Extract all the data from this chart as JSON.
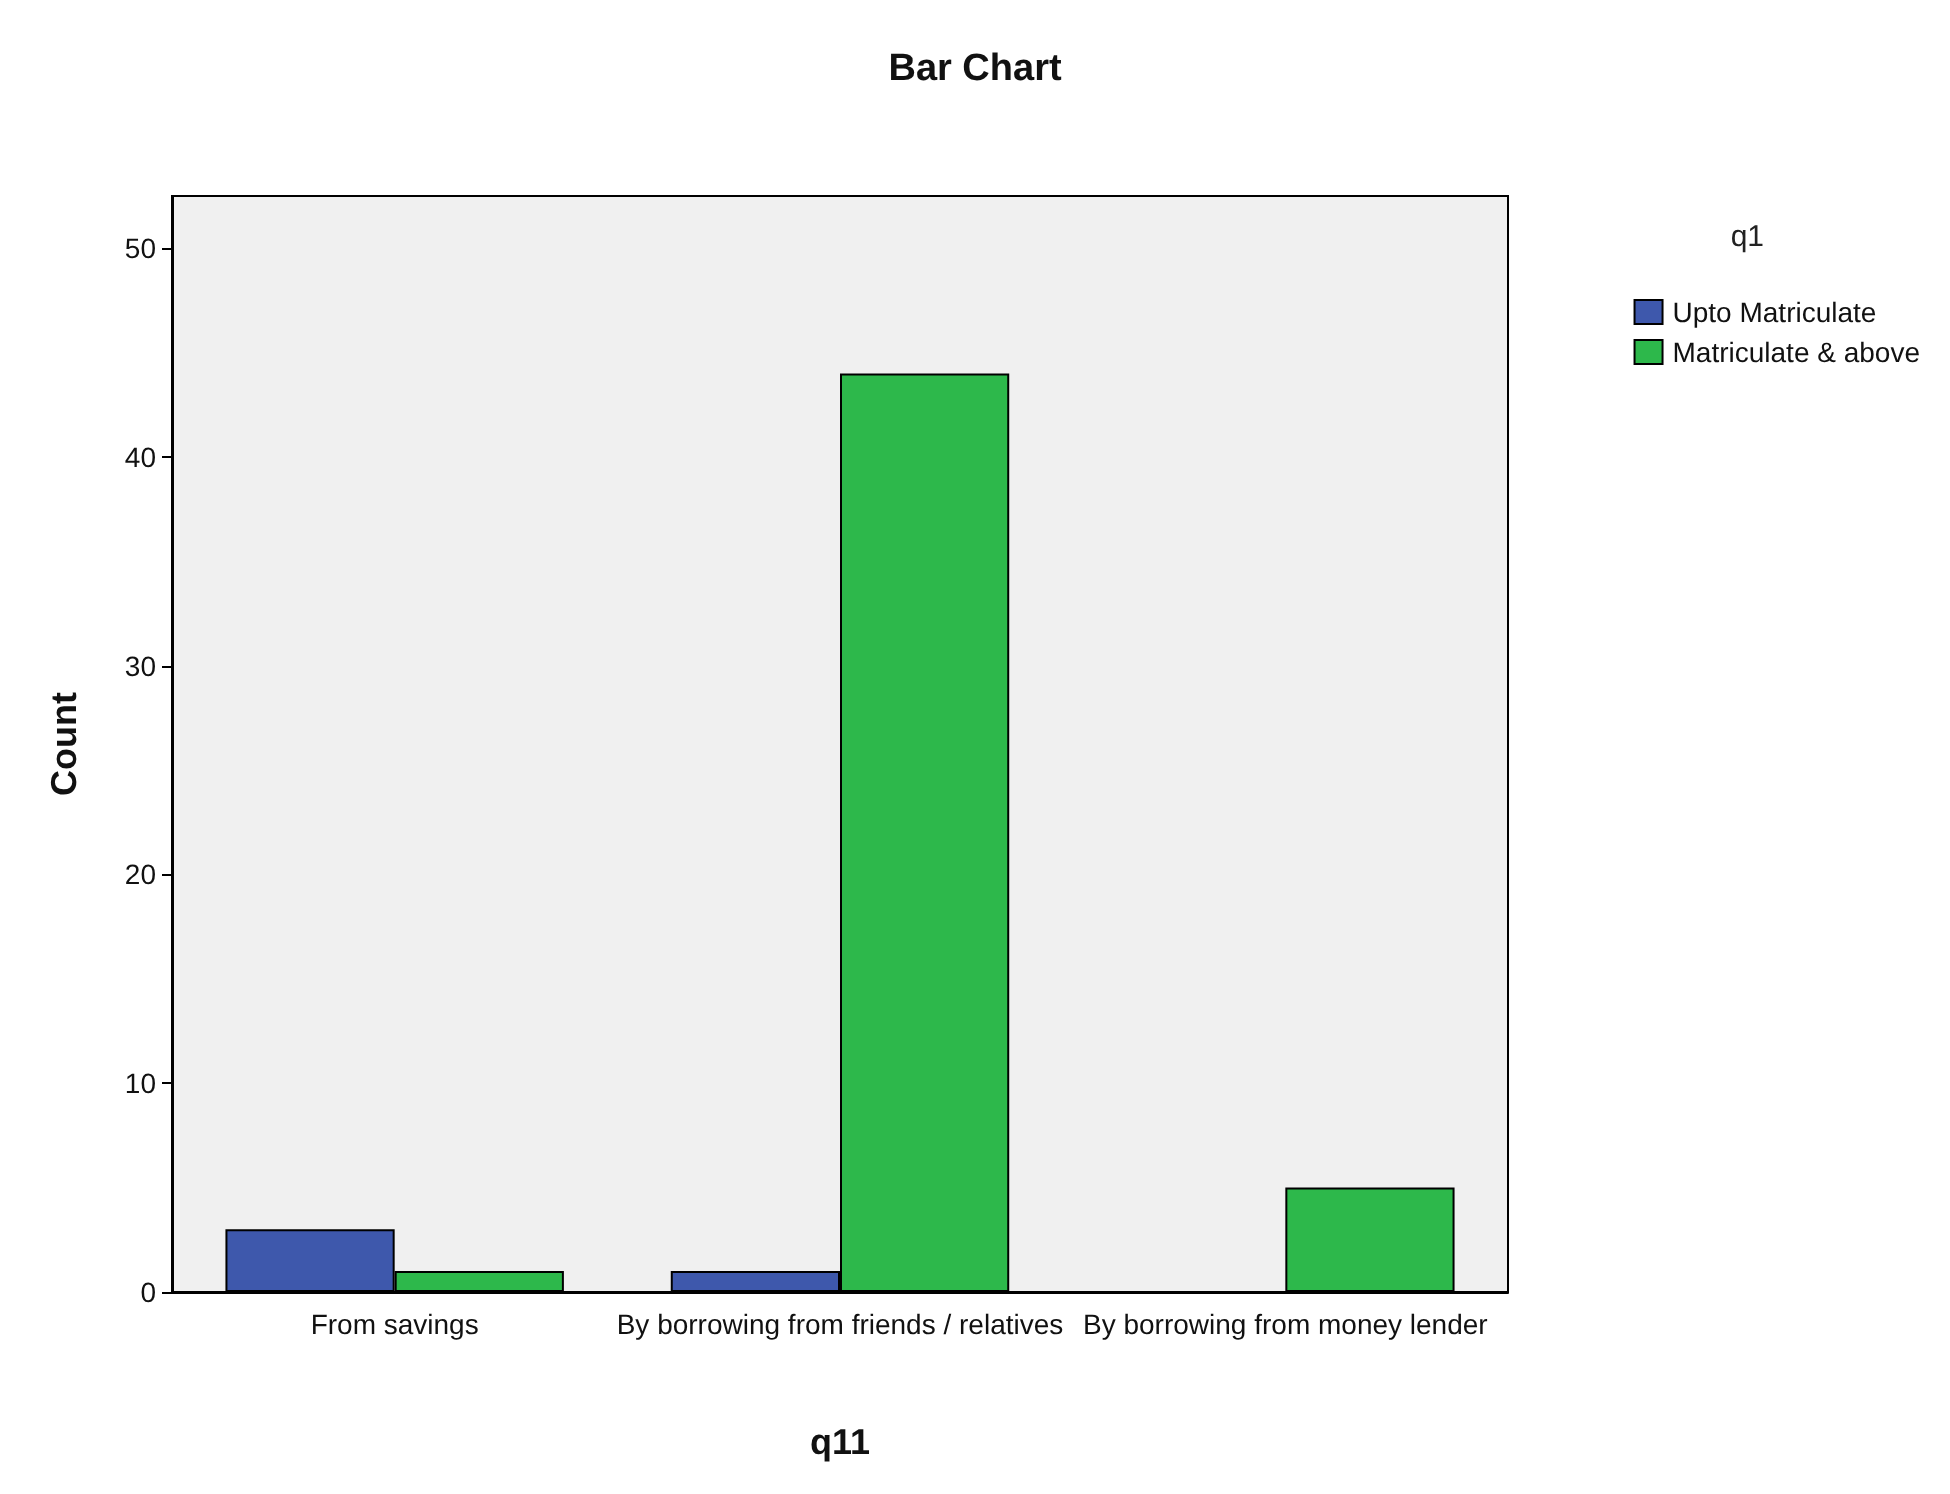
{
  "chart_data": {
    "type": "bar",
    "title": "Bar Chart",
    "xlabel": "q11",
    "ylabel": "Count",
    "legend_title": "q1",
    "categories": [
      "From savings",
      "By borrowing from friends / relatives",
      "By borrowing from money lender"
    ],
    "series": [
      {
        "name": "Upto Matriculate",
        "color": "#3e58ac",
        "values": [
          3,
          1,
          null
        ]
      },
      {
        "name": "Matriculate & above",
        "color": "#2db84b",
        "values": [
          1,
          44,
          5
        ]
      }
    ],
    "ylim": [
      0,
      52.5
    ],
    "yticks": [
      0,
      10,
      20,
      30,
      40,
      50
    ],
    "grid": false,
    "legend": "top right"
  }
}
